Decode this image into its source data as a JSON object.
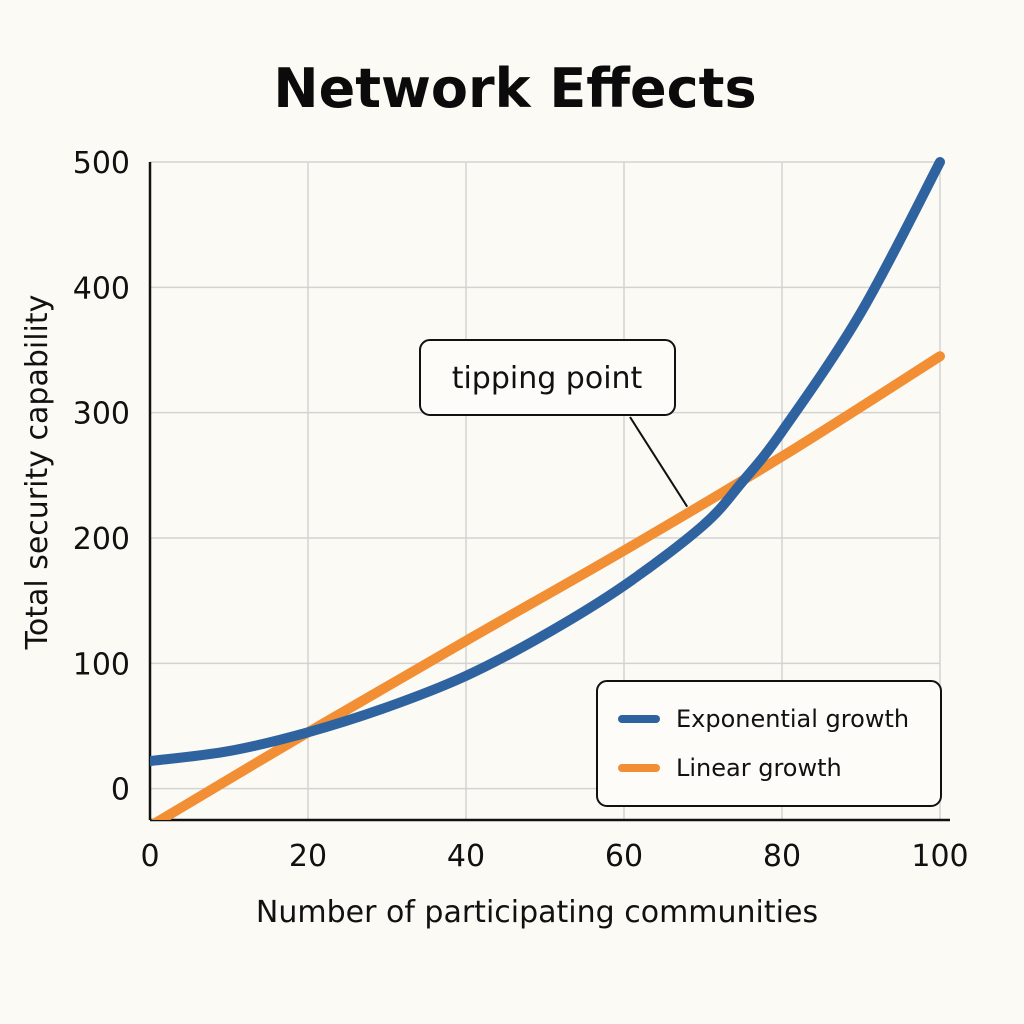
{
  "chart_data": {
    "type": "line",
    "title": "Network Effects",
    "xlabel": "Number of participating communities",
    "ylabel": "Total security capability",
    "xlim": [
      0,
      100
    ],
    "ylim": [
      -25,
      500
    ],
    "xticks": [
      0,
      20,
      40,
      60,
      80,
      100
    ],
    "yticks": [
      0,
      100,
      200,
      300,
      400,
      500
    ],
    "grid": true,
    "legend_position": "bottom-right",
    "annotation": {
      "text": "tipping point",
      "x": 68,
      "y": 225
    },
    "series": [
      {
        "name": "Exponential growth",
        "color": "#2f63a0",
        "x": [
          0,
          10,
          20,
          30,
          40,
          50,
          60,
          70,
          75,
          80,
          90,
          100
        ],
        "y": [
          22,
          30,
          45,
          65,
          90,
          123,
          162,
          210,
          245,
          285,
          380,
          500
        ]
      },
      {
        "name": "Linear growth",
        "color": "#f28e33",
        "x": [
          0,
          20,
          40,
          60,
          80,
          100
        ],
        "y": [
          -30,
          45,
          118,
          190,
          265,
          345
        ]
      }
    ]
  }
}
